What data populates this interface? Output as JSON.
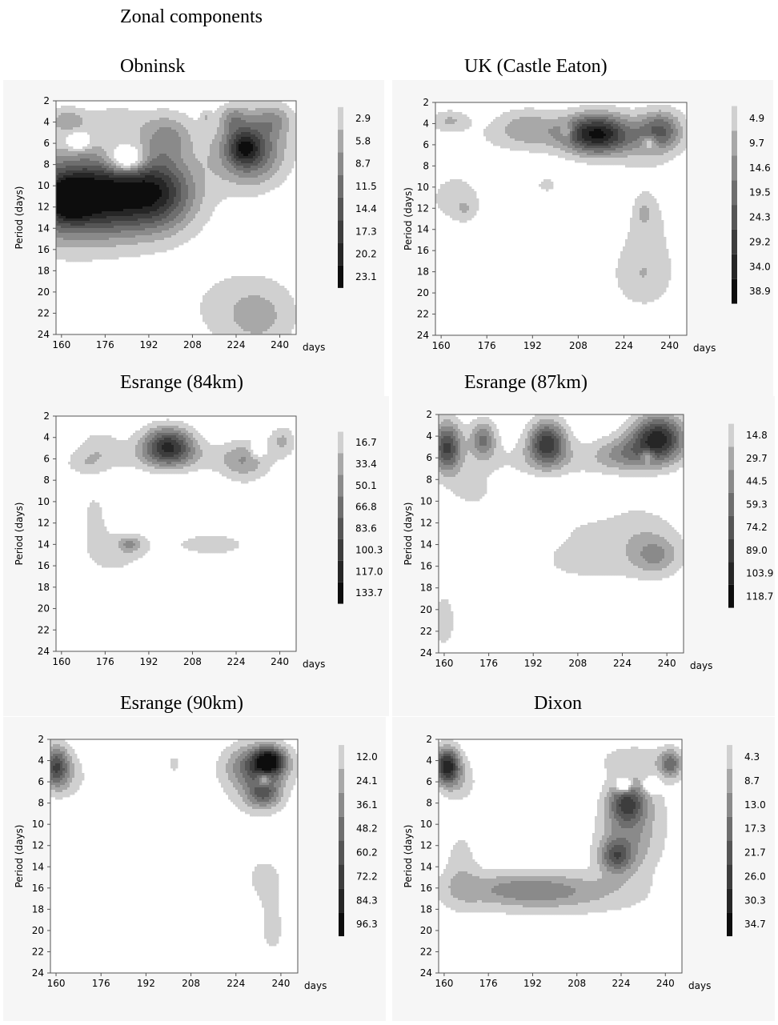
{
  "title": "Zonal components",
  "chart_data": [
    {
      "type": "heatmap",
      "title": "Obninsk",
      "xlabel": "days",
      "ylabel": "Period (days)",
      "x_ticks": [
        "160",
        "176",
        "192",
        "208",
        "224",
        "240"
      ],
      "y_ticks": [
        "2",
        "4",
        "6",
        "8",
        "10",
        "12",
        "14",
        "16",
        "18",
        "20",
        "22",
        "24"
      ],
      "xlim": [
        158,
        246
      ],
      "ylim": [
        2,
        24
      ],
      "levels": [
        "2.9",
        "5.8",
        "8.7",
        "11.5",
        "14.4",
        "17.3",
        "20.2",
        "23.1"
      ],
      "blobs": [
        {
          "x": 164,
          "y": 11.2,
          "rx": 48,
          "ry": 6.5,
          "v": 15
        },
        {
          "x": 175,
          "y": 10.8,
          "rx": 32,
          "ry": 4.8,
          "v": 13
        },
        {
          "x": 196,
          "y": 10.5,
          "rx": 20,
          "ry": 5.2,
          "v": 13
        },
        {
          "x": 163,
          "y": 11.3,
          "rx": 10,
          "ry": 2.6,
          "v": 12
        },
        {
          "x": 229,
          "y": 6.6,
          "rx": 19,
          "ry": 4.8,
          "v": 16
        },
        {
          "x": 227,
          "y": 6.4,
          "rx": 8,
          "ry": 2.2,
          "v": 10
        },
        {
          "x": 238,
          "y": 3.7,
          "rx": 11,
          "ry": 2.2,
          "v": 6
        },
        {
          "x": 223,
          "y": 3.6,
          "rx": 7,
          "ry": 1.8,
          "v": 6
        },
        {
          "x": 162,
          "y": 3.8,
          "rx": 10,
          "ry": 1.8,
          "v": 7
        },
        {
          "x": 180,
          "y": 3.8,
          "rx": 18,
          "ry": 2.2,
          "v": 4
        },
        {
          "x": 199,
          "y": 5.2,
          "rx": 14,
          "ry": 3.2,
          "v": 8
        },
        {
          "x": 213,
          "y": 3.5,
          "rx": 3,
          "ry": 0.9,
          "v": 4
        },
        {
          "x": 225,
          "y": 21.5,
          "rx": 32,
          "ry": 6,
          "v": 4
        },
        {
          "x": 233,
          "y": 22.5,
          "rx": 18,
          "ry": 4.5,
          "v": 4
        },
        {
          "x": 184,
          "y": 7.6,
          "rx": 10,
          "ry": 1.9,
          "v": -14
        },
        {
          "x": 166,
          "y": 5.8,
          "rx": 5,
          "ry": 1.1,
          "v": -10
        }
      ]
    },
    {
      "type": "heatmap",
      "title": "UK (Castle Eaton)",
      "xlabel": "days",
      "ylabel": "Period (days)",
      "x_ticks": [
        "160",
        "176",
        "192",
        "208",
        "224",
        "240"
      ],
      "y_ticks": [
        "2",
        "4",
        "6",
        "8",
        "10",
        "12",
        "14",
        "16",
        "18",
        "20",
        "22",
        "24"
      ],
      "xlim": [
        158,
        246
      ],
      "ylim": [
        2,
        24
      ],
      "levels": [
        "4.9",
        "9.7",
        "14.6",
        "19.5",
        "24.3",
        "29.2",
        "34.0",
        "38.9"
      ],
      "blobs": [
        {
          "x": 163,
          "y": 3.7,
          "rx": 10,
          "ry": 1.5,
          "v": 10
        },
        {
          "x": 190,
          "y": 4.2,
          "rx": 17,
          "ry": 2.6,
          "v": 10
        },
        {
          "x": 214,
          "y": 4.9,
          "rx": 16,
          "ry": 2.8,
          "v": 32
        },
        {
          "x": 237,
          "y": 4.6,
          "rx": 11,
          "ry": 2.8,
          "v": 20
        },
        {
          "x": 226,
          "y": 5.4,
          "rx": 24,
          "ry": 3.2,
          "v": 8
        },
        {
          "x": 200,
          "y": 5.3,
          "rx": 45,
          "ry": 2.6,
          "v": 6
        },
        {
          "x": 232,
          "y": 14,
          "rx": 16,
          "ry": 10,
          "v": 6
        },
        {
          "x": 230,
          "y": 18.5,
          "rx": 16,
          "ry": 4,
          "v": 6
        },
        {
          "x": 231,
          "y": 12.5,
          "rx": 3,
          "ry": 1.6,
          "v": 8
        },
        {
          "x": 165,
          "y": 11,
          "rx": 20,
          "ry": 5,
          "v": 6
        },
        {
          "x": 168,
          "y": 12,
          "rx": 5,
          "ry": 1.4,
          "v": 6
        },
        {
          "x": 197,
          "y": 9.8,
          "rx": 7,
          "ry": 1.4,
          "v": 6
        },
        {
          "x": 204,
          "y": 4.8,
          "rx": 3,
          "ry": 1,
          "v": -10
        },
        {
          "x": 233,
          "y": 5.8,
          "rx": 4,
          "ry": 1,
          "v": -12
        }
      ]
    },
    {
      "type": "heatmap",
      "title": "Esrange (84km)",
      "xlabel": "days",
      "ylabel": "Period (days)",
      "x_ticks": [
        "160",
        "176",
        "192",
        "208",
        "224",
        "240"
      ],
      "y_ticks": [
        "2",
        "4",
        "6",
        "8",
        "10",
        "12",
        "14",
        "16",
        "18",
        "20",
        "22",
        "24"
      ],
      "xlim": [
        158,
        246
      ],
      "ylim": [
        2,
        24
      ],
      "levels": [
        "16.7",
        "33.4",
        "50.1",
        "66.8",
        "83.6",
        "100.3",
        "117.0",
        "133.7"
      ],
      "blobs": [
        {
          "x": 174,
          "y": 5,
          "rx": 13,
          "ry": 2.8,
          "v": 25
        },
        {
          "x": 199,
          "y": 4.8,
          "rx": 14,
          "ry": 2.6,
          "v": 115
        },
        {
          "x": 227,
          "y": 6.2,
          "rx": 13,
          "ry": 3,
          "v": 40
        },
        {
          "x": 241,
          "y": 4.3,
          "rx": 7,
          "ry": 2,
          "v": 35
        },
        {
          "x": 205,
          "y": 6,
          "rx": 48,
          "ry": 2,
          "v": 18
        },
        {
          "x": 168,
          "y": 6.5,
          "rx": 10,
          "ry": 1.6,
          "v": 18
        },
        {
          "x": 215,
          "y": 14,
          "rx": 42,
          "ry": 3.3,
          "v": 18
        },
        {
          "x": 178,
          "y": 15,
          "rx": 20,
          "ry": 3.8,
          "v": 18
        },
        {
          "x": 172,
          "y": 11,
          "rx": 8,
          "ry": 4,
          "v": 18
        },
        {
          "x": 185,
          "y": 14,
          "rx": 6,
          "ry": 1.1,
          "v": 40
        },
        {
          "x": 232,
          "y": 5.2,
          "rx": 4,
          "ry": 1,
          "v": -40
        }
      ]
    },
    {
      "type": "heatmap",
      "title": "Esrange (87km)",
      "xlabel": "days",
      "ylabel": "Period (days)",
      "x_ticks": [
        "160",
        "176",
        "192",
        "208",
        "224",
        "240"
      ],
      "y_ticks": [
        "2",
        "4",
        "6",
        "8",
        "10",
        "12",
        "14",
        "16",
        "18",
        "20",
        "22",
        "24"
      ],
      "xlim": [
        158,
        246
      ],
      "ylim": [
        2,
        24
      ],
      "levels": [
        "14.8",
        "29.7",
        "44.5",
        "59.3",
        "74.2",
        "89.0",
        "103.9",
        "118.7"
      ],
      "blobs": [
        {
          "x": 161,
          "y": 5,
          "rx": 8,
          "ry": 3.5,
          "v": 90
        },
        {
          "x": 174,
          "y": 4.3,
          "rx": 7,
          "ry": 2.6,
          "v": 60
        },
        {
          "x": 197,
          "y": 4.6,
          "rx": 10,
          "ry": 3,
          "v": 95
        },
        {
          "x": 237,
          "y": 4.2,
          "rx": 14,
          "ry": 3.2,
          "v": 110
        },
        {
          "x": 225,
          "y": 5.6,
          "rx": 16,
          "ry": 2.4,
          "v": 40
        },
        {
          "x": 200,
          "y": 6.2,
          "rx": 50,
          "ry": 2.5,
          "v": 18
        },
        {
          "x": 170,
          "y": 9,
          "rx": 14,
          "ry": 3,
          "v": 18
        },
        {
          "x": 220,
          "y": 12,
          "rx": 28,
          "ry": 3.5,
          "v": 18
        },
        {
          "x": 235,
          "y": 14.5,
          "rx": 20,
          "ry": 4.5,
          "v": 18
        },
        {
          "x": 210,
          "y": 15.5,
          "rx": 30,
          "ry": 3.5,
          "v": 18
        },
        {
          "x": 236,
          "y": 15,
          "rx": 12,
          "ry": 2.4,
          "v": 30
        },
        {
          "x": 160,
          "y": 21,
          "rx": 9,
          "ry": 6,
          "v": 18
        },
        {
          "x": 214,
          "y": 10,
          "rx": 13,
          "ry": 2.1,
          "v": -30
        },
        {
          "x": 233,
          "y": 5.8,
          "rx": 3.5,
          "ry": 0.9,
          "v": -40
        }
      ]
    },
    {
      "type": "heatmap",
      "title": "Esrange (90km)",
      "xlabel": "days",
      "ylabel": "Period (days)",
      "x_ticks": [
        "160",
        "176",
        "192",
        "208",
        "224",
        "240"
      ],
      "y_ticks": [
        "2",
        "4",
        "6",
        "8",
        "10",
        "12",
        "14",
        "16",
        "18",
        "20",
        "22",
        "24"
      ],
      "xlim": [
        158,
        246
      ],
      "ylim": [
        2,
        24
      ],
      "levels": [
        "12.0",
        "24.1",
        "36.1",
        "48.2",
        "60.2",
        "72.2",
        "84.3",
        "96.3"
      ],
      "blobs": [
        {
          "x": 160,
          "y": 4.6,
          "rx": 7,
          "ry": 3,
          "v": 70
        },
        {
          "x": 232,
          "y": 4.5,
          "rx": 16,
          "ry": 3,
          "v": 55
        },
        {
          "x": 236,
          "y": 4.0,
          "rx": 8,
          "ry": 1.8,
          "v": 70
        },
        {
          "x": 234,
          "y": 7.2,
          "rx": 9,
          "ry": 2,
          "v": 45
        },
        {
          "x": 230,
          "y": 6.5,
          "rx": 18,
          "ry": 5,
          "v": 15
        },
        {
          "x": 166,
          "y": 5.5,
          "rx": 10,
          "ry": 3.5,
          "v": 14
        },
        {
          "x": 202,
          "y": 4.3,
          "rx": 5,
          "ry": 1.8,
          "v": 14
        },
        {
          "x": 234,
          "y": 15,
          "rx": 13,
          "ry": 4,
          "v": 14
        },
        {
          "x": 237,
          "y": 20,
          "rx": 9,
          "ry": 5,
          "v": 14
        },
        {
          "x": 234,
          "y": 5.8,
          "rx": 3.5,
          "ry": 0.9,
          "v": -40
        }
      ]
    },
    {
      "type": "heatmap",
      "title": "Dixon",
      "xlabel": "days",
      "ylabel": "Period (days)",
      "x_ticks": [
        "160",
        "176",
        "192",
        "208",
        "224",
        "240"
      ],
      "y_ticks": [
        "2",
        "4",
        "6",
        "8",
        "10",
        "12",
        "14",
        "16",
        "18",
        "20",
        "22",
        "24"
      ],
      "xlim": [
        158,
        246
      ],
      "ylim": [
        2,
        24
      ],
      "levels": [
        "4.3",
        "8.7",
        "13.0",
        "17.3",
        "21.7",
        "26.0",
        "30.3",
        "34.7"
      ],
      "blobs": [
        {
          "x": 161,
          "y": 4.5,
          "rx": 7,
          "ry": 2.6,
          "v": 32
        },
        {
          "x": 242,
          "y": 4.3,
          "rx": 6,
          "ry": 2,
          "v": 18
        },
        {
          "x": 226,
          "y": 8,
          "rx": 10,
          "ry": 2.8,
          "v": 22
        },
        {
          "x": 222,
          "y": 13,
          "rx": 8,
          "ry": 2.2,
          "v": 16
        },
        {
          "x": 190,
          "y": 16,
          "rx": 40,
          "ry": 2.4,
          "v": 12
        },
        {
          "x": 225,
          "y": 12,
          "rx": 16,
          "ry": 5,
          "v": 10
        },
        {
          "x": 200,
          "y": 17,
          "rx": 50,
          "ry": 3,
          "v": 6
        },
        {
          "x": 166,
          "y": 14,
          "rx": 10,
          "ry": 6,
          "v": 6
        },
        {
          "x": 231,
          "y": 9,
          "rx": 18,
          "ry": 7,
          "v": 6
        },
        {
          "x": 228,
          "y": 4,
          "rx": 20,
          "ry": 2.2,
          "v": 6
        },
        {
          "x": 166,
          "y": 6,
          "rx": 10,
          "ry": 3,
          "v": 6
        },
        {
          "x": 225,
          "y": 6.3,
          "rx": 3.5,
          "ry": 0.9,
          "v": -25
        },
        {
          "x": 235,
          "y": 6.3,
          "rx": 3.5,
          "ry": 0.9,
          "v": -25
        }
      ]
    }
  ]
}
